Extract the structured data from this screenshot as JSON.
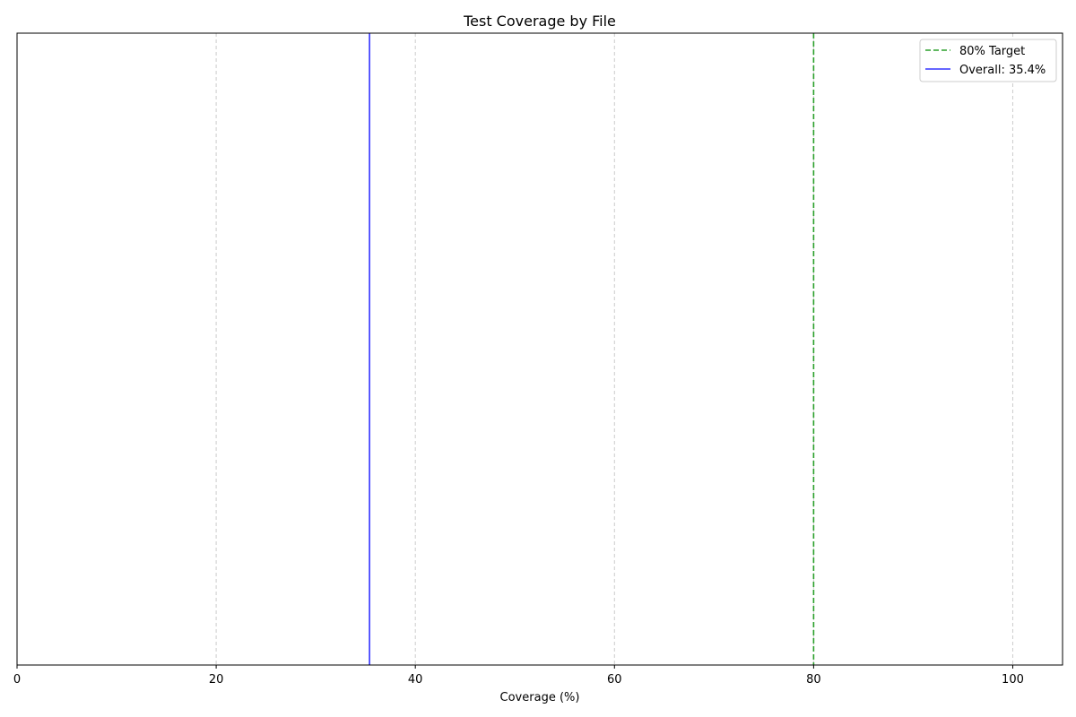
{
  "chart_data": {
    "type": "bar",
    "title": "Test Coverage by File",
    "xlabel": "Coverage (%)",
    "ylabel": "",
    "xlim": [
      0,
      105
    ],
    "xticks": [
      0,
      20,
      40,
      60,
      80,
      100
    ],
    "xtick_labels": [
      "0",
      "20",
      "40",
      "60",
      "80",
      "100"
    ],
    "categories": [],
    "values": [],
    "grid": "x-axis dashed",
    "legend_position": "top-right",
    "reference_lines": [
      {
        "label": "80% Target",
        "value": 80,
        "color": "#2ca02c",
        "style": "dashed"
      },
      {
        "label": "Overall: 35.4%",
        "value": 35.4,
        "color": "#3333ff",
        "style": "solid"
      }
    ]
  },
  "colors": {
    "grid": "#cccccc",
    "axis": "#000000",
    "legend_border": "#cccccc"
  }
}
